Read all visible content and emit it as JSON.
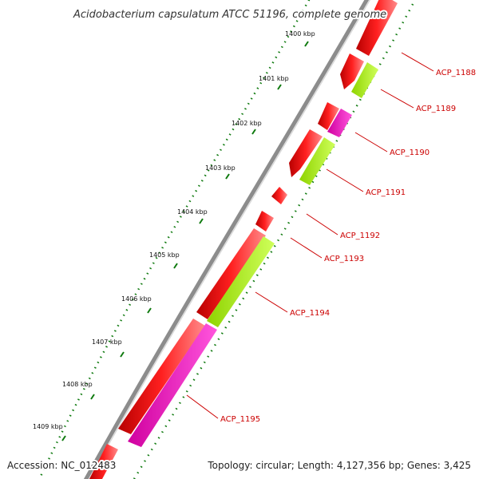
{
  "title": "Acidobacterium capsulatum ATCC 51196, complete genome",
  "footer": {
    "accession": "Accession: NC_012483",
    "summary": "Topology: circular; Length: 4,127,356 bp; Genes: 3,425"
  },
  "colors": {
    "backbone": "#8c8c8c",
    "gene_red": "#ff1a1a",
    "gene_pink": "#ff22cc",
    "gene_green": "#b5ff2a",
    "tick_green": "#0f7a0f",
    "label_red": "#cc0000"
  },
  "scale_ticks": [
    "1400 kbp",
    "1401 kbp",
    "1402 kbp",
    "1403 kbp",
    "1404 kbp",
    "1405 kbp",
    "1406 kbp",
    "1407 kbp",
    "1408 kbp",
    "1409 kbp"
  ],
  "genes": [
    {
      "label": "ACP_1188",
      "color": "red"
    },
    {
      "label": "ACP_1189",
      "color": "green"
    },
    {
      "label": "ACP_1190",
      "color": "pink"
    },
    {
      "label": "ACP_1191",
      "color": "green"
    },
    {
      "label": "ACP_1192",
      "color": "red"
    },
    {
      "label": "ACP_1193",
      "color": "red"
    },
    {
      "label": "ACP_1194",
      "color": "green"
    },
    {
      "label": "ACP_1195",
      "color": "pink"
    }
  ]
}
